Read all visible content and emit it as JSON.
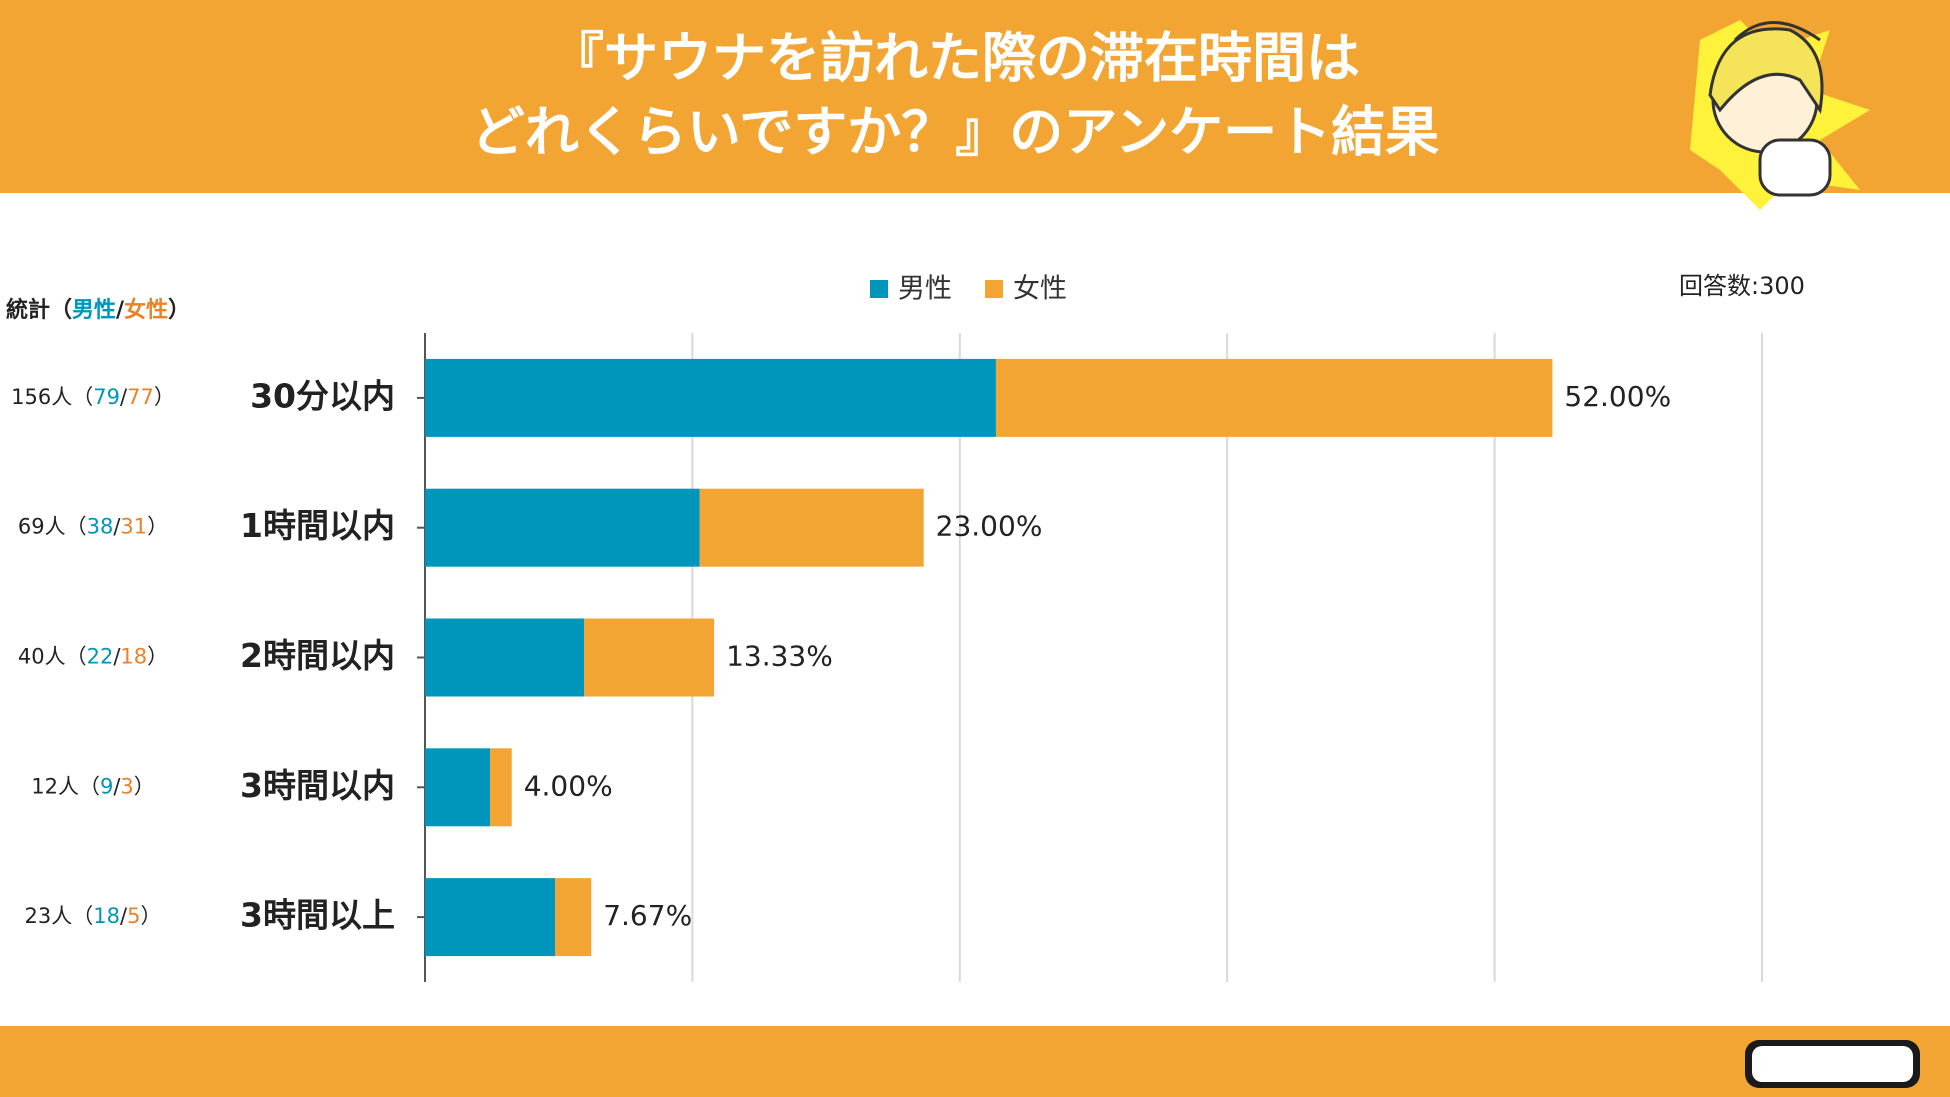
{
  "chart_data": {
    "type": "stacked_barh",
    "title_lines": [
      "『サウナを訪れた際の滞在時間は",
      "どれくらいですか？』のアンケート結果"
    ],
    "note": "回答数:300",
    "stats_header": "統計",
    "paren_open": "（",
    "separator": "/",
    "paren_close": "）",
    "categories": [
      "30分以内",
      "1時間以内",
      "2時間以内",
      "3時間以内",
      "3時間以上"
    ],
    "total_labels": [
      "156人",
      "69人",
      "40人",
      "12人",
      "23人"
    ],
    "percent_labels": [
      "52.00%",
      "23.00%",
      "13.33%",
      "4.00%",
      "7.67%"
    ],
    "series": [
      {
        "name": "男性",
        "color": "#0096bb",
        "values": [
          79,
          38,
          22,
          9,
          18
        ]
      },
      {
        "name": "女性",
        "color": "#f3a533",
        "values": [
          77,
          31,
          18,
          3,
          5
        ]
      }
    ],
    "xlim": [
      0,
      185
    ],
    "xticks": [
      0,
      37,
      74,
      111,
      148,
      185
    ],
    "grid": true
  }
}
